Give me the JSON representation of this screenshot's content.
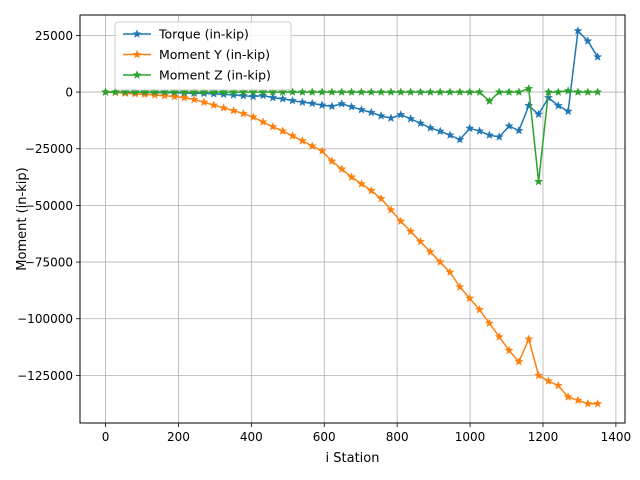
{
  "chart_data": {
    "type": "line",
    "xlabel": "i Station",
    "ylabel": "Moment (in-kip)",
    "xlim": [
      -70,
      1425
    ],
    "ylim": [
      -146000,
      34000
    ],
    "xticks": [
      0,
      200,
      400,
      600,
      800,
      1000,
      1200,
      1400
    ],
    "yticks": [
      25000,
      0,
      -25000,
      -50000,
      -75000,
      -100000,
      -125000
    ],
    "ytick_labels": [
      "25000",
      "0",
      "−25000",
      "−50000",
      "−75000",
      "−100000",
      "−125000"
    ],
    "grid": true,
    "legend_position": "top-left",
    "marker": "star",
    "x": [
      0,
      27,
      54,
      81,
      108,
      135,
      162,
      189,
      216,
      243,
      270,
      297,
      324,
      351,
      378,
      405,
      432,
      459,
      486,
      513,
      540,
      567,
      594,
      621,
      648,
      675,
      702,
      729,
      756,
      783,
      810,
      837,
      864,
      891,
      918,
      945,
      972,
      999,
      1026,
      1053,
      1080,
      1107,
      1134,
      1161,
      1188,
      1215,
      1242,
      1269,
      1296,
      1323,
      1350
    ],
    "series": [
      {
        "name": "Torque (in-kip)",
        "color": "#1f77b4",
        "values": [
          0,
          0,
          -100,
          -100,
          -200,
          -200,
          -300,
          -300,
          -400,
          -500,
          -600,
          -800,
          -1000,
          -1300,
          -1600,
          -2000,
          -1500,
          -2500,
          -3000,
          -3800,
          -4500,
          -5000,
          -5800,
          -6300,
          -5200,
          -6500,
          -7800,
          -9000,
          -10500,
          -11500,
          -10000,
          -11800,
          -13800,
          -15800,
          -17300,
          -19000,
          -21000,
          -16000,
          -17200,
          -19000,
          -19800,
          -15000,
          -17000,
          -6000,
          -9800,
          -2500,
          -6000,
          -8500,
          27000,
          22500,
          15500
        ]
      },
      {
        "name": "Moment Y (in-kip)",
        "color": "#ff7f0e",
        "values": [
          0,
          -200,
          -500,
          -800,
          -1000,
          -1300,
          -1600,
          -2000,
          -2500,
          -3300,
          -4500,
          -5800,
          -7000,
          -8200,
          -9500,
          -11000,
          -13200,
          -15300,
          -17200,
          -19300,
          -21500,
          -23800,
          -26000,
          -30500,
          -34000,
          -37500,
          -40500,
          -43500,
          -47000,
          -52000,
          -57000,
          -61500,
          -66000,
          -70500,
          -75000,
          -79500,
          -86000,
          -91000,
          -96000,
          -102000,
          -108000,
          -114000,
          -119000,
          -109000,
          -125000,
          -127500,
          -129500,
          -134500,
          -136000,
          -137500,
          -137500
        ]
      },
      {
        "name": "Moment Z (in-kip)",
        "color": "#2ca02c",
        "values": [
          0,
          0,
          0,
          0,
          0,
          0,
          0,
          0,
          0,
          0,
          0,
          0,
          0,
          0,
          0,
          0,
          0,
          0,
          0,
          0,
          0,
          0,
          0,
          0,
          0,
          0,
          0,
          0,
          0,
          0,
          0,
          0,
          0,
          0,
          0,
          0,
          0,
          0,
          0,
          -4000,
          0,
          0,
          0,
          1500,
          -39500,
          0,
          0,
          500,
          0,
          0,
          0
        ]
      }
    ]
  }
}
